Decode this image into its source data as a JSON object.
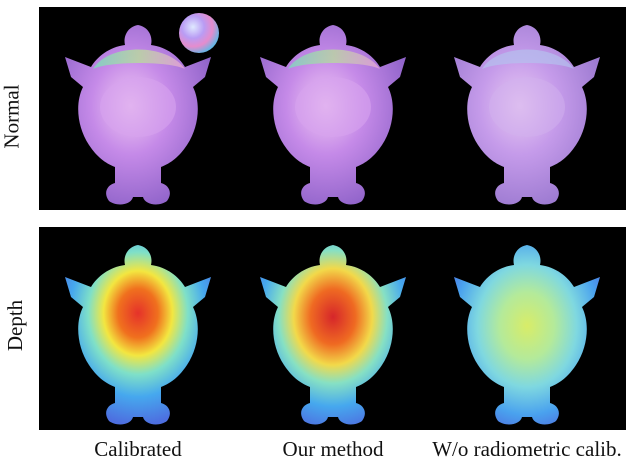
{
  "rows": [
    {
      "label": "Normal",
      "kind": "normal"
    },
    {
      "label": "Depth",
      "kind": "depth"
    }
  ],
  "columns": [
    {
      "label": "Calibrated"
    },
    {
      "label": "Our method"
    },
    {
      "label": "W/o radiometric calib."
    }
  ],
  "colors": {
    "background": "#000000",
    "normal_body": "#c58ae8",
    "depth_hot": "#e5322a",
    "depth_cool": "#4d6fe0"
  }
}
